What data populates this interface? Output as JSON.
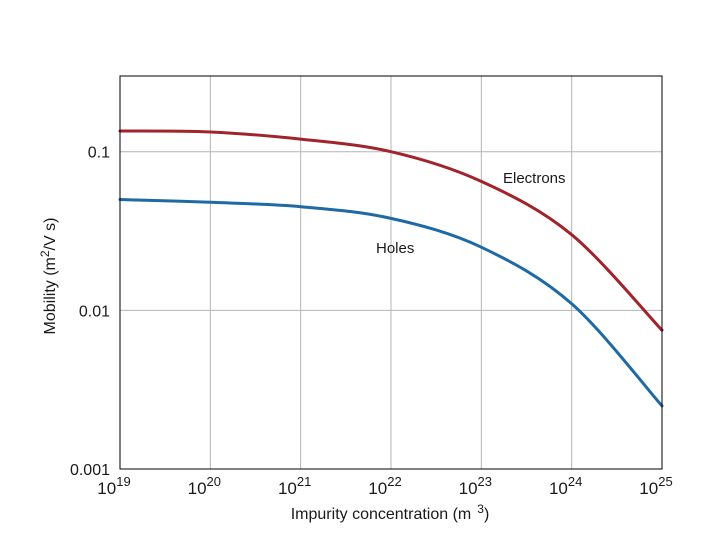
{
  "chart_data": {
    "type": "line",
    "xscale": "log",
    "yscale": "log",
    "xlabel": "Impurity concentration (m",
    "xlabel_exp": "3",
    "xlabel_tail": ")",
    "ylabel": "Mobility (m",
    "ylabel_exp": "2",
    "ylabel_tail": "/V   s)",
    "xlim": [
      1e+19,
      1e+25
    ],
    "ylim": [
      0.001,
      0.3
    ],
    "x_ticks": [
      {
        "base": "10",
        "exp": "19",
        "value": 1e+19
      },
      {
        "base": "10",
        "exp": "20",
        "value": 1e+20
      },
      {
        "base": "10",
        "exp": "21",
        "value": 1e+21
      },
      {
        "base": "10",
        "exp": "22",
        "value": 1e+22
      },
      {
        "base": "10",
        "exp": "23",
        "value": 1e+23
      },
      {
        "base": "10",
        "exp": "24",
        "value": 1e+24
      },
      {
        "base": "10",
        "exp": "25",
        "value": 1e+25
      }
    ],
    "y_ticks": [
      {
        "label": "0.001",
        "value": 0.001
      },
      {
        "label": "0.01",
        "value": 0.01
      },
      {
        "label": "0.1",
        "value": 0.1
      }
    ],
    "grid": true,
    "series": [
      {
        "name": "Electrons",
        "color": "#a0242c",
        "x": [
          1e+19,
          1e+20,
          1e+21,
          1e+22,
          1e+23,
          1e+24,
          1e+25
        ],
        "y": [
          0.135,
          0.133,
          0.12,
          0.1,
          0.065,
          0.03,
          0.0075
        ]
      },
      {
        "name": "Holes",
        "color": "#1f6aa5",
        "x": [
          1e+19,
          1e+20,
          1e+21,
          1e+22,
          1e+23,
          1e+24,
          1e+25
        ],
        "y": [
          0.05,
          0.048,
          0.045,
          0.038,
          0.025,
          0.011,
          0.0025
        ]
      }
    ]
  }
}
